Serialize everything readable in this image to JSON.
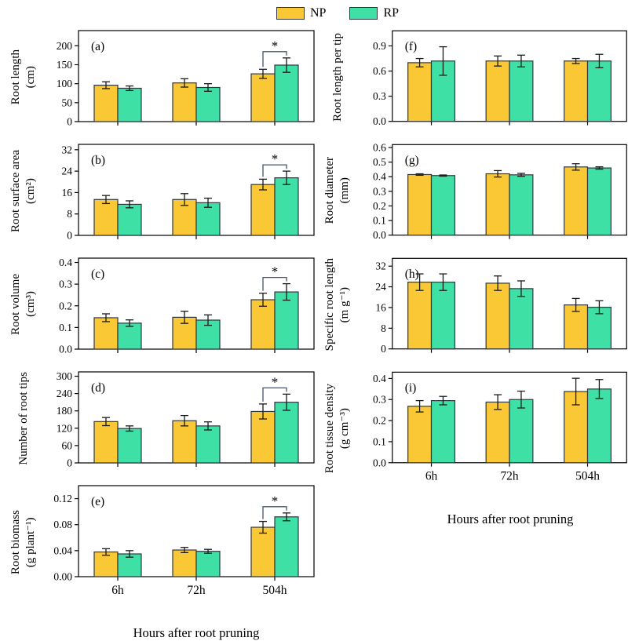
{
  "legend": {
    "items": [
      {
        "label": "NP",
        "color": "#FBC835"
      },
      {
        "label": "RP",
        "color": "#3EE0A6"
      }
    ]
  },
  "colors": {
    "np_fill": "#FBC835",
    "rp_fill": "#3EE0A6",
    "bar_border": "#2F3640",
    "error_bar": "#1A1A1A",
    "axis": "#000000",
    "bracket": "#46536A",
    "sig_marker_color": "#232D52"
  },
  "chart_data": {
    "type": "bar",
    "subtype": "grouped-bars-with-error-bars",
    "categories": [
      "6h",
      "72h",
      "504h"
    ],
    "xlabel": "Hours after root pruning",
    "legend_entries": [
      "NP",
      "RP"
    ],
    "legend_position": "top-center",
    "sig_marker": "*",
    "panels": [
      {
        "tag": "(a)",
        "title": "Root length",
        "unit": "(cm)",
        "yticks": [
          "0",
          "50",
          "100",
          "150",
          "200"
        ],
        "ymax": 240,
        "series": [
          {
            "name": "NP",
            "values": [
              96,
              102,
              126
            ],
            "errors": [
              9,
              11,
              12
            ]
          },
          {
            "name": "RP",
            "values": [
              88,
              90,
              149
            ],
            "errors": [
              6,
              10,
              19
            ]
          }
        ],
        "sig": true,
        "show_x_labels": false
      },
      {
        "tag": "(b)",
        "title": "Root surface area",
        "unit": "(cm²)",
        "yticks": [
          "0",
          "8",
          "16",
          "24",
          "32"
        ],
        "ymax": 34,
        "series": [
          {
            "name": "NP",
            "values": [
              13.4,
              13.4,
              19.0
            ],
            "errors": [
              1.5,
              2.2,
              2.0
            ]
          },
          {
            "name": "RP",
            "values": [
              11.6,
              12.2,
              21.5
            ],
            "errors": [
              1.3,
              1.7,
              2.5
            ]
          }
        ],
        "sig": true,
        "show_x_labels": false
      },
      {
        "tag": "(c)",
        "title": "Root volume",
        "unit": "(cm³)",
        "yticks": [
          "0.0",
          "0.1",
          "0.2",
          "0.3",
          "0.4"
        ],
        "ymax": 0.42,
        "series": [
          {
            "name": "NP",
            "values": [
              0.145,
              0.147,
              0.228
            ],
            "errors": [
              0.018,
              0.028,
              0.03
            ]
          },
          {
            "name": "RP",
            "values": [
              0.12,
              0.134,
              0.264
            ],
            "errors": [
              0.015,
              0.024,
              0.038
            ]
          }
        ],
        "sig": true,
        "show_x_labels": false
      },
      {
        "tag": "(d)",
        "title": "Number of root tips",
        "unit": "",
        "yticks": [
          "0",
          "60",
          "120",
          "180",
          "240",
          "300"
        ],
        "ymax": 315,
        "series": [
          {
            "name": "NP",
            "values": [
              143,
              146,
              178
            ],
            "errors": [
              14,
              18,
              26
            ]
          },
          {
            "name": "RP",
            "values": [
              119,
              128,
              210
            ],
            "errors": [
              9,
              14,
              28
            ]
          }
        ],
        "sig": true,
        "show_x_labels": false
      },
      {
        "tag": "(e)",
        "title": "Root biomass",
        "unit": "(g plant⁻¹)",
        "yticks": [
          "0.00",
          "0.04",
          "0.08",
          "0.12"
        ],
        "ymax": 0.14,
        "series": [
          {
            "name": "NP",
            "values": [
              0.038,
              0.041,
              0.076
            ],
            "errors": [
              0.005,
              0.004,
              0.009
            ]
          },
          {
            "name": "RP",
            "values": [
              0.035,
              0.039,
              0.092
            ],
            "errors": [
              0.005,
              0.003,
              0.006
            ]
          }
        ],
        "sig": true,
        "show_x_labels": true
      },
      {
        "tag": "(f)",
        "title": "Root length per tip",
        "unit": "",
        "yticks": [
          "0.0",
          "0.3",
          "0.6",
          "0.9"
        ],
        "ymax": 1.08,
        "series": [
          {
            "name": "NP",
            "values": [
              0.7,
              0.72,
              0.72
            ],
            "errors": [
              0.05,
              0.06,
              0.03
            ]
          },
          {
            "name": "RP",
            "values": [
              0.72,
              0.72,
              0.72
            ],
            "errors": [
              0.17,
              0.07,
              0.08
            ]
          }
        ],
        "sig": false,
        "show_x_labels": false
      },
      {
        "tag": "(g)",
        "title": "Root diameter",
        "unit": "(mm)",
        "yticks": [
          "0.0",
          "0.1",
          "0.2",
          "0.3",
          "0.4",
          "0.5",
          "0.6"
        ],
        "ymax": 0.62,
        "series": [
          {
            "name": "NP",
            "values": [
              0.415,
              0.42,
              0.467
            ],
            "errors": [
              0.005,
              0.022,
              0.022
            ]
          },
          {
            "name": "RP",
            "values": [
              0.408,
              0.413,
              0.46
            ],
            "errors": [
              0.004,
              0.01,
              0.008
            ]
          }
        ],
        "sig": false,
        "show_x_labels": false
      },
      {
        "tag": "(h)",
        "title": "Specific root length",
        "unit": "(m g⁻¹)",
        "yticks": [
          "0",
          "8",
          "16",
          "24",
          "32"
        ],
        "ymax": 35,
        "series": [
          {
            "name": "NP",
            "values": [
              25.8,
              25.4,
              17.0
            ],
            "errors": [
              3.2,
              2.8,
              2.5
            ]
          },
          {
            "name": "RP",
            "values": [
              25.8,
              23.3,
              16.1
            ],
            "errors": [
              3.2,
              3.0,
              2.5
            ]
          }
        ],
        "sig": false,
        "show_x_labels": false
      },
      {
        "tag": "(i)",
        "title": "Root tissue density",
        "unit": "(g cm⁻³)",
        "yticks": [
          "0.0",
          "0.1",
          "0.2",
          "0.3",
          "0.4"
        ],
        "ymax": 0.43,
        "series": [
          {
            "name": "NP",
            "values": [
              0.268,
              0.288,
              0.338
            ],
            "errors": [
              0.027,
              0.035,
              0.063
            ]
          },
          {
            "name": "RP",
            "values": [
              0.295,
              0.3,
              0.35
            ],
            "errors": [
              0.02,
              0.04,
              0.045
            ]
          }
        ],
        "sig": false,
        "show_x_labels": true
      }
    ]
  }
}
